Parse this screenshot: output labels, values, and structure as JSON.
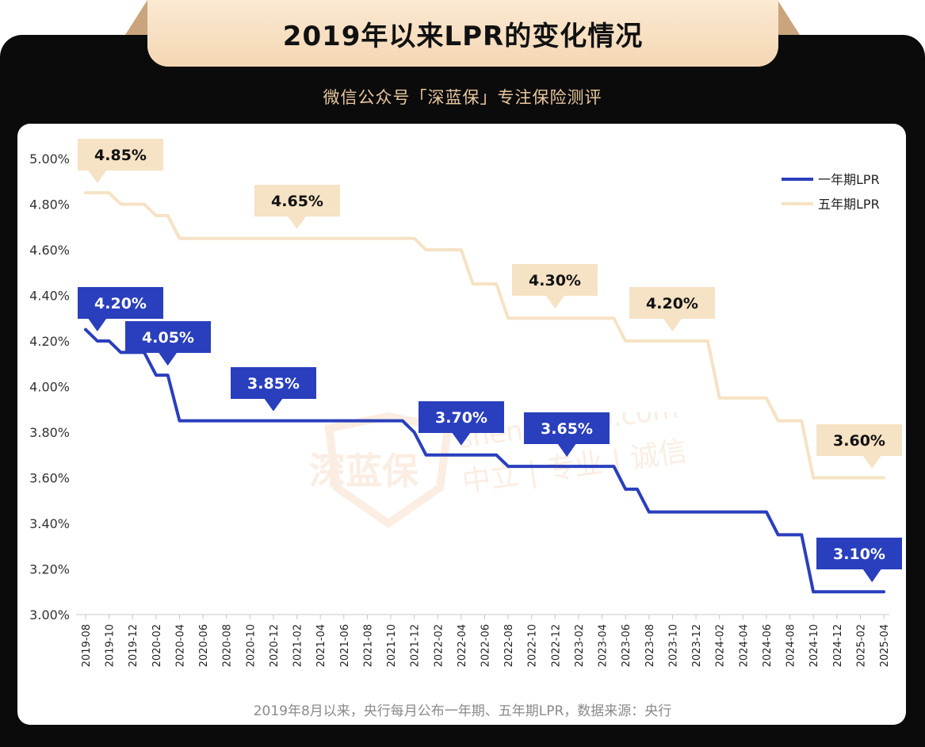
{
  "header": {
    "title": "2019年以来LPR的变化情况",
    "subtitle": "微信公众号「深蓝保」专注保险测评"
  },
  "footer": {
    "note": "2019年8月以来，央行每月公布一年期、五年期LPR，数据来源：央行"
  },
  "watermark": {
    "brand": "深蓝保",
    "site": "shenlanbao.com",
    "slogan": "中立 | 专业 | 诚信"
  },
  "colors": {
    "one_year": "#2a3fbd",
    "five_year": "#f6e2c4",
    "frame": "#0b0b0b",
    "title_bg": "#f4d7b4"
  },
  "chart_data": {
    "type": "line",
    "ylim": [
      3.0,
      5.0
    ],
    "yticks": [
      "3.00%",
      "3.20%",
      "3.40%",
      "3.60%",
      "3.80%",
      "4.00%",
      "4.20%",
      "4.40%",
      "4.60%",
      "4.80%",
      "5.00%"
    ],
    "ytick_values": [
      3.0,
      3.2,
      3.4,
      3.6,
      3.8,
      4.0,
      4.2,
      4.4,
      4.6,
      4.8,
      5.0
    ],
    "xtick_labels": [
      "2019-08",
      "2019-10",
      "2019-12",
      "2020-02",
      "2020-04",
      "2020-06",
      "2020-08",
      "2020-10",
      "2020-12",
      "2021-02",
      "2021-04",
      "2021-06",
      "2021-08",
      "2021-10",
      "2021-12",
      "2022-02",
      "2022-04",
      "2022-06",
      "2022-08",
      "2022-10",
      "2022-12",
      "2023-02",
      "2023-04",
      "2023-06",
      "2023-08",
      "2023-10",
      "2023-12",
      "2024-02",
      "2024-04",
      "2024-06",
      "2024-08",
      "2024-10",
      "2024-12",
      "2025-02",
      "2025-04"
    ],
    "legend": "top-right",
    "series": [
      {
        "name": "一年期LPR",
        "points": [
          [
            "2019-08",
            4.25
          ],
          [
            "2019-09",
            4.2
          ],
          [
            "2019-10",
            4.2
          ],
          [
            "2019-11",
            4.15
          ],
          [
            "2019-12",
            4.15
          ],
          [
            "2020-01",
            4.15
          ],
          [
            "2020-02",
            4.05
          ],
          [
            "2020-03",
            4.05
          ],
          [
            "2020-04",
            3.85
          ],
          [
            "2020-05",
            3.85
          ],
          [
            "2021-11",
            3.85
          ],
          [
            "2021-12",
            3.8
          ],
          [
            "2022-01",
            3.7
          ],
          [
            "2022-02",
            3.7
          ],
          [
            "2022-03",
            3.7
          ],
          [
            "2022-04",
            3.7
          ],
          [
            "2022-05",
            3.7
          ],
          [
            "2022-06",
            3.7
          ],
          [
            "2022-07",
            3.7
          ],
          [
            "2022-08",
            3.65
          ],
          [
            "2022-09",
            3.65
          ],
          [
            "2023-05",
            3.65
          ],
          [
            "2023-06",
            3.55
          ],
          [
            "2023-07",
            3.55
          ],
          [
            "2023-08",
            3.45
          ],
          [
            "2023-09",
            3.45
          ],
          [
            "2024-06",
            3.45
          ],
          [
            "2024-07",
            3.35
          ],
          [
            "2024-08",
            3.35
          ],
          [
            "2024-09",
            3.35
          ],
          [
            "2024-10",
            3.1
          ],
          [
            "2024-11",
            3.1
          ],
          [
            "2025-04",
            3.1
          ]
        ],
        "callouts": [
          {
            "label": "4.20%",
            "at": "2019-09",
            "value": 4.2
          },
          {
            "label": "4.05%",
            "at": "2020-03",
            "value": 4.05
          },
          {
            "label": "3.85%",
            "at": "2020-12",
            "value": 3.85
          },
          {
            "label": "3.70%",
            "at": "2022-04",
            "value": 3.7
          },
          {
            "label": "3.65%",
            "at": "2023-01",
            "value": 3.65
          },
          {
            "label": "3.10%",
            "at": "2025-03",
            "value": 3.1
          }
        ]
      },
      {
        "name": "五年期LPR",
        "points": [
          [
            "2019-08",
            4.85
          ],
          [
            "2019-09",
            4.85
          ],
          [
            "2019-10",
            4.85
          ],
          [
            "2019-11",
            4.8
          ],
          [
            "2019-12",
            4.8
          ],
          [
            "2020-01",
            4.8
          ],
          [
            "2020-02",
            4.75
          ],
          [
            "2020-03",
            4.75
          ],
          [
            "2020-04",
            4.65
          ],
          [
            "2020-05",
            4.65
          ],
          [
            "2021-12",
            4.65
          ],
          [
            "2022-01",
            4.6
          ],
          [
            "2022-02",
            4.6
          ],
          [
            "2022-03",
            4.6
          ],
          [
            "2022-04",
            4.6
          ],
          [
            "2022-05",
            4.45
          ],
          [
            "2022-06",
            4.45
          ],
          [
            "2022-07",
            4.45
          ],
          [
            "2022-08",
            4.3
          ],
          [
            "2022-09",
            4.3
          ],
          [
            "2023-05",
            4.3
          ],
          [
            "2023-06",
            4.2
          ],
          [
            "2023-07",
            4.2
          ],
          [
            "2024-01",
            4.2
          ],
          [
            "2024-02",
            3.95
          ],
          [
            "2024-03",
            3.95
          ],
          [
            "2024-06",
            3.95
          ],
          [
            "2024-07",
            3.85
          ],
          [
            "2024-08",
            3.85
          ],
          [
            "2024-09",
            3.85
          ],
          [
            "2024-10",
            3.6
          ],
          [
            "2024-11",
            3.6
          ],
          [
            "2025-04",
            3.6
          ]
        ],
        "callouts": [
          {
            "label": "4.85%",
            "at": "2019-09",
            "value": 4.85
          },
          {
            "label": "4.65%",
            "at": "2021-02",
            "value": 4.65
          },
          {
            "label": "4.30%",
            "at": "2022-12",
            "value": 4.3
          },
          {
            "label": "4.20%",
            "at": "2023-10",
            "value": 4.2
          },
          {
            "label": "3.60%",
            "at": "2025-03",
            "value": 3.6
          }
        ]
      }
    ]
  }
}
